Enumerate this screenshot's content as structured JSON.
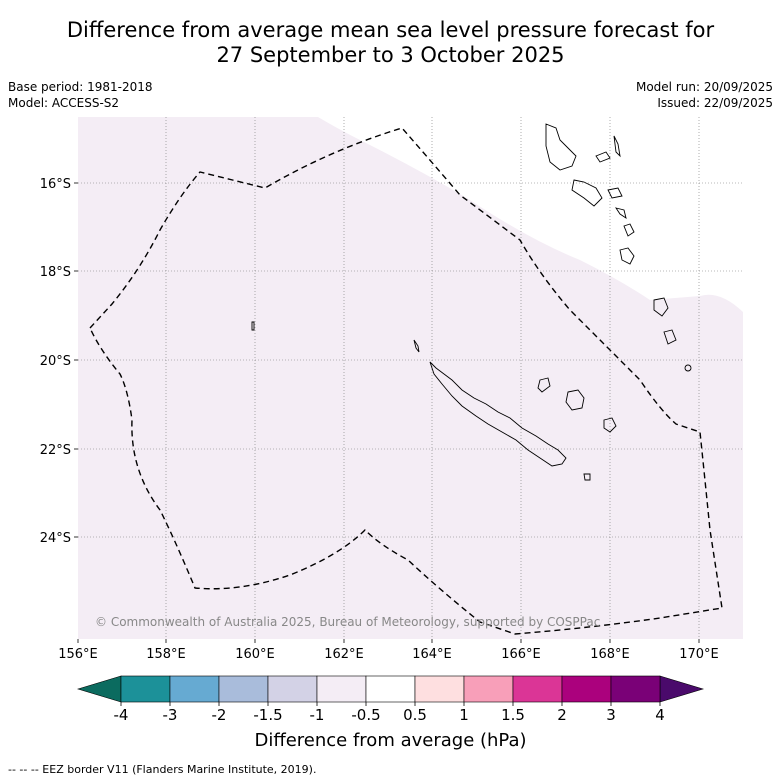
{
  "title": {
    "line1": "Difference from average mean sea level pressure forecast for",
    "line2": "27 September to 3 October 2025"
  },
  "meta": {
    "base_period": "Base period: 1981-2018",
    "model": "Model: ACCESS-S2",
    "model_run": "Model run: 20/09/2025",
    "issued": "Issued: 22/09/2025"
  },
  "map": {
    "lon_labels": [
      "156°E",
      "158°E",
      "160°E",
      "162°E",
      "164°E",
      "166°E",
      "168°E",
      "170°E"
    ],
    "lat_labels": [
      "16°S",
      "18°S",
      "20°S",
      "22°S",
      "24°S"
    ],
    "copyright": "© Commonwealth of Australia 2025, Bureau of Meteorology, supported by COSPPac",
    "anomaly_fill_color": "#f4edf5",
    "anomaly_class": "-1 to -0.5"
  },
  "colorbar": {
    "ticks": [
      "-4",
      "-3",
      "-2",
      "-1.5",
      "-1",
      "-0.5",
      "0.5",
      "1",
      "1.5",
      "2",
      "3",
      "4"
    ],
    "low_extend_color": "#0b6b5f",
    "high_extend_color": "#4a0a6b",
    "colors": [
      "#1c9199",
      "#66aad2",
      "#a9bcdb",
      "#d3d2e6",
      "#f4edf5",
      "#ffffff",
      "#fedfe0",
      "#f89fb9",
      "#db3596",
      "#ab017d",
      "#7a0177"
    ],
    "label": "Difference from average (hPa)"
  },
  "footer": "-- -- -- EEZ border V11 (Flanders Marine Institute, 2019)."
}
